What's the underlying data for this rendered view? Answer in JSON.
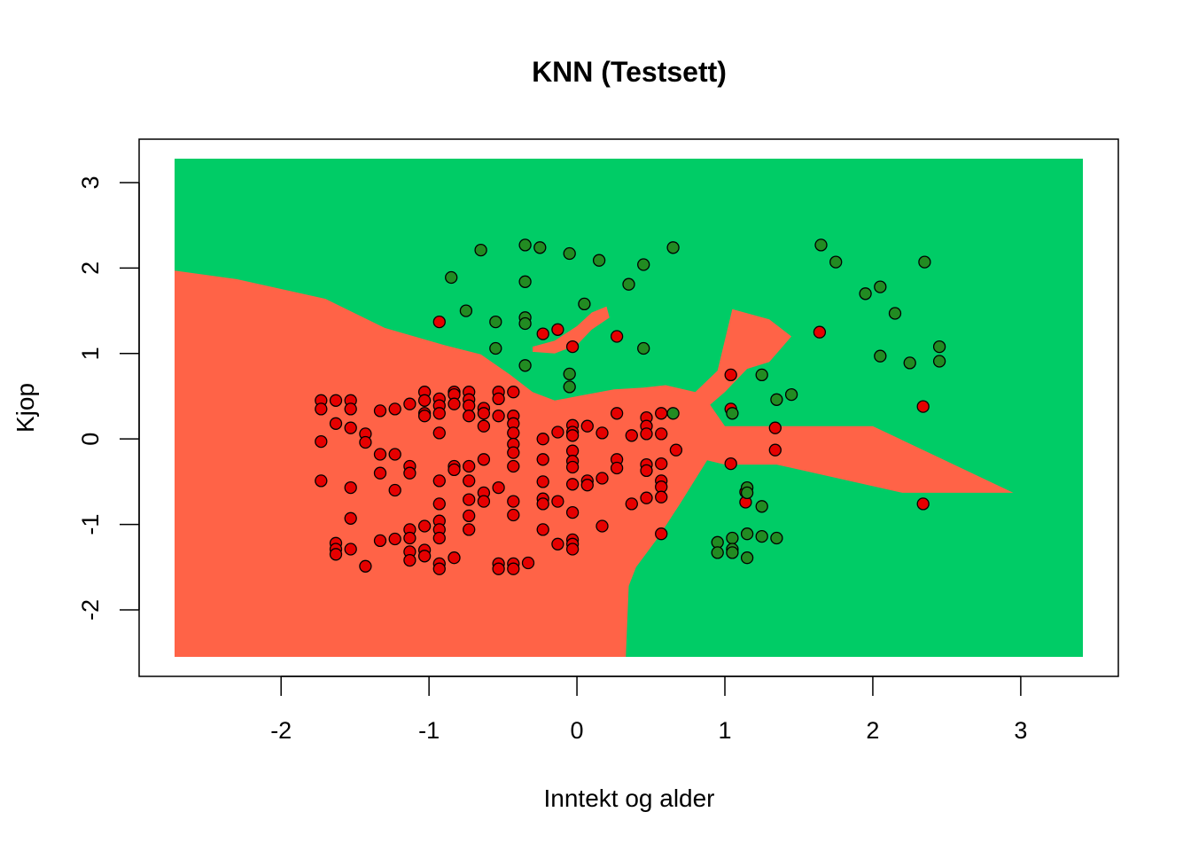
{
  "chart_data": {
    "type": "scatter",
    "title": "KNN (Testsett)",
    "xlabel": "Inntekt og alder",
    "ylabel": "Kjop",
    "xlim": [
      -2.72,
      3.42
    ],
    "ylim": [
      -2.55,
      3.28
    ],
    "x_ticks": [
      -2,
      -1,
      0,
      1,
      2,
      3
    ],
    "y_ticks": [
      -2,
      -1,
      0,
      1,
      2,
      3
    ],
    "x_tick_labels": [
      "-2",
      "-1",
      "0",
      "1",
      "2",
      "3"
    ],
    "y_tick_labels": [
      "-2",
      "-1",
      "0",
      "1",
      "2",
      "3"
    ],
    "colors": {
      "region_0": "#ff6347",
      "region_1": "#00cc66",
      "point_0": "#e60000",
      "point_1": "#228b22",
      "point_edge": "#000000"
    },
    "regions": {
      "class_0_polygons": [
        [
          [
            -2.72,
            1.97
          ],
          [
            -2.3,
            1.87
          ],
          [
            -1.7,
            1.64
          ],
          [
            -1.3,
            1.3
          ],
          [
            -0.9,
            1.1
          ],
          [
            -0.65,
            0.99
          ],
          [
            -0.45,
            0.75
          ],
          [
            -0.3,
            0.55
          ],
          [
            -0.15,
            0.45
          ],
          [
            0.0,
            0.5
          ],
          [
            0.25,
            0.58
          ],
          [
            0.45,
            0.6
          ],
          [
            0.6,
            0.63
          ],
          [
            0.8,
            0.55
          ],
          [
            0.95,
            0.8
          ],
          [
            1.05,
            1.52
          ],
          [
            1.3,
            1.4
          ],
          [
            1.45,
            1.2
          ],
          [
            1.3,
            0.9
          ],
          [
            1.15,
            0.82
          ],
          [
            1.0,
            0.55
          ],
          [
            0.9,
            0.4
          ],
          [
            1.0,
            0.15
          ],
          [
            2.0,
            0.15
          ],
          [
            2.95,
            -0.63
          ],
          [
            2.2,
            -0.63
          ],
          [
            1.35,
            -0.3
          ],
          [
            1.0,
            -0.3
          ],
          [
            0.88,
            -0.25
          ],
          [
            0.7,
            -0.75
          ],
          [
            0.55,
            -1.15
          ],
          [
            0.4,
            -1.5
          ],
          [
            0.35,
            -1.72
          ],
          [
            0.33,
            -2.55
          ],
          [
            -2.72,
            -2.55
          ]
        ],
        [
          [
            -0.3,
            1.08
          ],
          [
            -0.15,
            1.15
          ],
          [
            0.0,
            1.32
          ],
          [
            0.1,
            1.48
          ],
          [
            0.2,
            1.55
          ],
          [
            0.22,
            1.42
          ],
          [
            0.1,
            1.28
          ],
          [
            0.0,
            1.1
          ],
          [
            -0.15,
            1.0
          ],
          [
            -0.3,
            1.02
          ]
        ]
      ]
    },
    "series": [
      {
        "class": 0,
        "points": [
          [
            -1.73,
            0.45
          ],
          [
            -1.73,
            0.35
          ],
          [
            -1.73,
            -0.03
          ],
          [
            -1.73,
            -0.49
          ],
          [
            -1.63,
            0.45
          ],
          [
            -1.63,
            0.18
          ],
          [
            -1.63,
            -1.22
          ],
          [
            -1.63,
            -1.29
          ],
          [
            -1.63,
            -1.35
          ],
          [
            -1.53,
            0.45
          ],
          [
            -1.53,
            0.35
          ],
          [
            -1.53,
            0.13
          ],
          [
            -1.53,
            -0.57
          ],
          [
            -1.53,
            -0.93
          ],
          [
            -1.53,
            -1.29
          ],
          [
            -1.43,
            0.06
          ],
          [
            -1.43,
            -0.04
          ],
          [
            -1.43,
            -1.49
          ],
          [
            -1.33,
            0.33
          ],
          [
            -1.33,
            -0.18
          ],
          [
            -1.33,
            -0.4
          ],
          [
            -1.33,
            -1.19
          ],
          [
            -1.23,
            0.35
          ],
          [
            -1.23,
            -0.18
          ],
          [
            -1.23,
            -0.6
          ],
          [
            -1.23,
            -1.17
          ],
          [
            -1.13,
            0.41
          ],
          [
            -1.13,
            -0.32
          ],
          [
            -1.13,
            -0.4
          ],
          [
            -1.13,
            -1.06
          ],
          [
            -1.13,
            -1.16
          ],
          [
            -1.13,
            -1.32
          ],
          [
            -1.13,
            -1.42
          ],
          [
            -1.03,
            0.55
          ],
          [
            -1.03,
            0.45
          ],
          [
            -1.03,
            0.3
          ],
          [
            -1.03,
            0.27
          ],
          [
            -1.03,
            -1.02
          ],
          [
            -1.03,
            -1.3
          ],
          [
            -1.03,
            -1.37
          ],
          [
            -0.93,
            0.47
          ],
          [
            -0.93,
            0.39
          ],
          [
            -0.93,
            0.3
          ],
          [
            -0.93,
            0.07
          ],
          [
            -0.93,
            -0.49
          ],
          [
            -0.93,
            -0.76
          ],
          [
            -0.93,
            -0.96
          ],
          [
            -0.93,
            -1.06
          ],
          [
            -0.93,
            -1.16
          ],
          [
            -0.93,
            -1.46
          ],
          [
            -0.93,
            -1.52
          ],
          [
            -0.93,
            1.37
          ],
          [
            -0.83,
            0.55
          ],
          [
            -0.83,
            0.52
          ],
          [
            -0.83,
            0.41
          ],
          [
            -0.83,
            -0.32
          ],
          [
            -0.83,
            -0.36
          ],
          [
            -0.83,
            -1.39
          ],
          [
            -0.73,
            0.55
          ],
          [
            -0.73,
            0.46
          ],
          [
            -0.73,
            0.39
          ],
          [
            -0.73,
            0.27
          ],
          [
            -0.73,
            -0.32
          ],
          [
            -0.73,
            -0.49
          ],
          [
            -0.73,
            -0.71
          ],
          [
            -0.73,
            -0.9
          ],
          [
            -0.73,
            -1.06
          ],
          [
            -0.63,
            0.36
          ],
          [
            -0.63,
            0.3
          ],
          [
            -0.63,
            0.15
          ],
          [
            -0.63,
            -0.24
          ],
          [
            -0.63,
            -0.63
          ],
          [
            -0.63,
            -0.73
          ],
          [
            -0.53,
            0.55
          ],
          [
            -0.53,
            0.47
          ],
          [
            -0.53,
            0.27
          ],
          [
            -0.53,
            -0.57
          ],
          [
            -0.53,
            -1.46
          ],
          [
            -0.53,
            -1.52
          ],
          [
            -0.43,
            0.55
          ],
          [
            -0.43,
            0.27
          ],
          [
            -0.43,
            0.18
          ],
          [
            -0.43,
            0.07
          ],
          [
            -0.43,
            -0.06
          ],
          [
            -0.43,
            -0.16
          ],
          [
            -0.43,
            -0.32
          ],
          [
            -0.43,
            -0.73
          ],
          [
            -0.43,
            -0.89
          ],
          [
            -0.43,
            -1.46
          ],
          [
            -0.43,
            -1.52
          ],
          [
            -0.33,
            -1.45
          ],
          [
            -0.23,
            0.0
          ],
          [
            -0.23,
            -0.24
          ],
          [
            -0.23,
            -0.5
          ],
          [
            -0.23,
            -0.7
          ],
          [
            -0.23,
            -0.76
          ],
          [
            -0.23,
            -1.06
          ],
          [
            -0.23,
            1.23
          ],
          [
            -0.13,
            0.08
          ],
          [
            -0.13,
            -0.73
          ],
          [
            -0.13,
            -1.23
          ],
          [
            -0.13,
            1.28
          ],
          [
            -0.03,
            0.16
          ],
          [
            -0.03,
            0.08
          ],
          [
            -0.03,
            0.04
          ],
          [
            -0.03,
            -0.14
          ],
          [
            -0.03,
            -0.26
          ],
          [
            -0.03,
            -0.33
          ],
          [
            -0.03,
            -0.53
          ],
          [
            -0.03,
            -0.86
          ],
          [
            -0.03,
            -1.18
          ],
          [
            -0.03,
            -1.23
          ],
          [
            -0.03,
            -1.29
          ],
          [
            -0.03,
            1.08
          ],
          [
            0.07,
            0.15
          ],
          [
            0.07,
            -0.49
          ],
          [
            0.07,
            -0.54
          ],
          [
            0.17,
            0.07
          ],
          [
            0.17,
            -0.46
          ],
          [
            0.17,
            -1.02
          ],
          [
            0.27,
            0.3
          ],
          [
            0.27,
            -0.24
          ],
          [
            0.27,
            -0.34
          ],
          [
            0.27,
            1.2
          ],
          [
            0.37,
            0.04
          ],
          [
            0.37,
            -0.76
          ],
          [
            0.47,
            0.25
          ],
          [
            0.47,
            0.15
          ],
          [
            0.47,
            0.06
          ],
          [
            0.47,
            -0.3
          ],
          [
            0.47,
            -0.37
          ],
          [
            0.47,
            -0.69
          ],
          [
            0.57,
            0.3
          ],
          [
            0.57,
            0.06
          ],
          [
            0.57,
            -0.29
          ],
          [
            0.57,
            -0.49
          ],
          [
            0.57,
            -0.56
          ],
          [
            0.57,
            -0.68
          ],
          [
            0.57,
            -1.11
          ],
          [
            0.67,
            -0.13
          ],
          [
            1.04,
            0.75
          ],
          [
            1.04,
            0.35
          ],
          [
            1.04,
            -0.29
          ],
          [
            1.14,
            -0.62
          ],
          [
            1.14,
            -0.74
          ],
          [
            1.34,
            0.13
          ],
          [
            1.34,
            -0.13
          ],
          [
            1.64,
            1.25
          ],
          [
            2.34,
            0.38
          ],
          [
            2.34,
            -0.76
          ]
        ]
      },
      {
        "class": 1,
        "points": [
          [
            -0.65,
            2.21
          ],
          [
            -0.35,
            2.27
          ],
          [
            -0.25,
            2.24
          ],
          [
            -0.05,
            2.17
          ],
          [
            0.15,
            2.09
          ],
          [
            0.45,
            2.04
          ],
          [
            0.65,
            2.24
          ],
          [
            -0.85,
            1.89
          ],
          [
            -0.35,
            1.84
          ],
          [
            0.35,
            1.81
          ],
          [
            -0.75,
            1.5
          ],
          [
            0.05,
            1.58
          ],
          [
            -0.55,
            1.37
          ],
          [
            -0.35,
            1.42
          ],
          [
            -0.35,
            1.35
          ],
          [
            -0.55,
            1.06
          ],
          [
            0.45,
            1.06
          ],
          [
            -0.35,
            0.86
          ],
          [
            -0.05,
            0.76
          ],
          [
            -0.05,
            0.61
          ],
          [
            0.65,
            0.3
          ],
          [
            1.05,
            0.3
          ],
          [
            1.25,
            0.75
          ],
          [
            1.35,
            0.46
          ],
          [
            1.45,
            0.52
          ],
          [
            1.15,
            -0.57
          ],
          [
            1.15,
            -0.63
          ],
          [
            1.25,
            -0.79
          ],
          [
            0.95,
            -1.21
          ],
          [
            0.95,
            -1.33
          ],
          [
            1.05,
            -1.16
          ],
          [
            1.05,
            -1.29
          ],
          [
            1.05,
            -1.33
          ],
          [
            1.15,
            -1.11
          ],
          [
            1.15,
            -1.39
          ],
          [
            1.25,
            -1.14
          ],
          [
            1.35,
            -1.16
          ],
          [
            1.65,
            2.27
          ],
          [
            1.75,
            2.07
          ],
          [
            1.95,
            1.7
          ],
          [
            2.05,
            1.78
          ],
          [
            2.15,
            1.47
          ],
          [
            2.05,
            0.97
          ],
          [
            2.25,
            0.89
          ],
          [
            2.35,
            2.07
          ],
          [
            2.45,
            1.08
          ],
          [
            2.45,
            0.91
          ]
        ]
      }
    ]
  }
}
